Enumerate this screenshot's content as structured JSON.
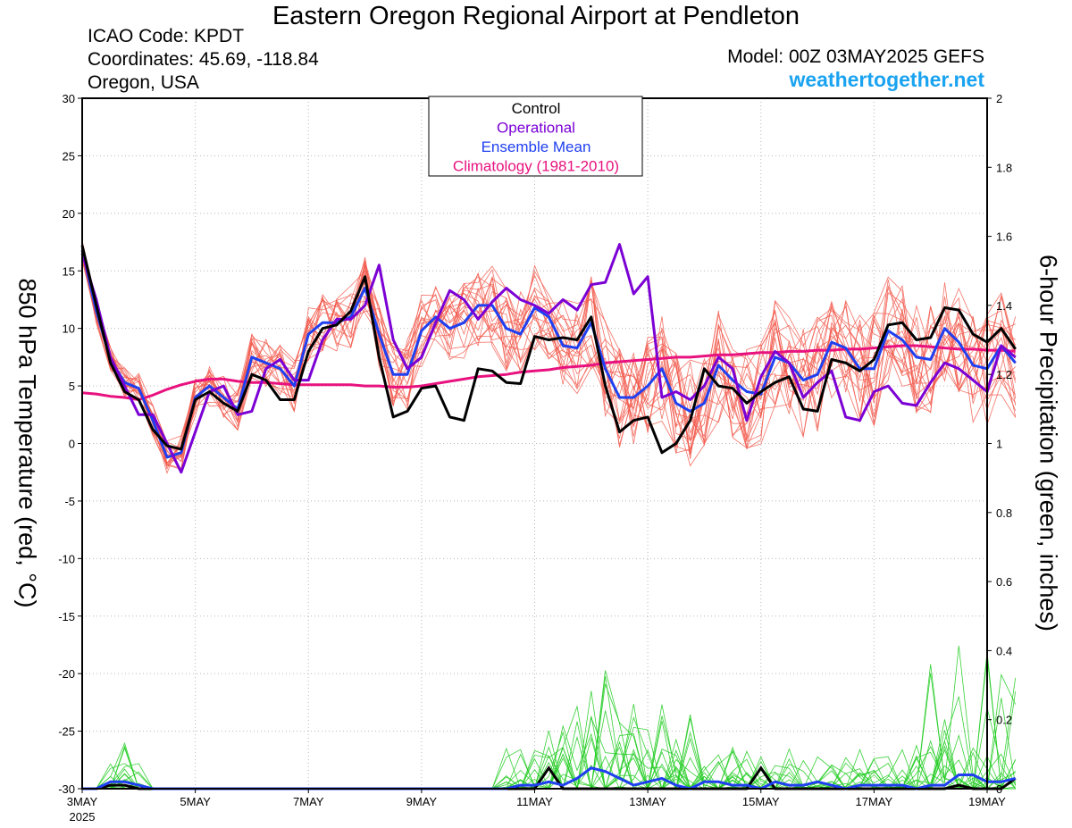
{
  "header": {
    "title": "Eastern Oregon Regional Airport at Pendleton",
    "icao": "ICAO Code: KPDT",
    "coordinates": "Coordinates: 45.69, -118.84",
    "region": "Oregon, USA",
    "model": "Model: 00Z 03MAY2025 GEFS",
    "brand": "weathertogether.net"
  },
  "colors": {
    "control": "#000000",
    "operational": "#7b00d4",
    "ensemble_mean": "#1f3ff0",
    "climatology": "#e8127f",
    "members_temp": "#f25a4e",
    "members_precip": "#22cc22",
    "brand": "#1aa3f0"
  },
  "chart_data": {
    "type": "line",
    "title": "Eastern Oregon Regional Airport at Pendleton",
    "xlabel": "",
    "ylabel": "850 hPa Temperature (red, °C)",
    "ylabel_right": "6-hour Precipitation (green, inches)",
    "x_unit": "days since 3 May 2025 00Z (6-hourly)",
    "xlim": [
      0,
      16
    ],
    "ylim": [
      -30,
      30
    ],
    "ylim_right": [
      0,
      2
    ],
    "x_ticks": [
      {
        "x": 0,
        "label": "3MAY"
      },
      {
        "x": 2,
        "label": "5MAY"
      },
      {
        "x": 4,
        "label": "7MAY"
      },
      {
        "x": 6,
        "label": "9MAY"
      },
      {
        "x": 8,
        "label": "11MAY"
      },
      {
        "x": 10,
        "label": "13MAY"
      },
      {
        "x": 12,
        "label": "15MAY"
      },
      {
        "x": 14,
        "label": "17MAY"
      },
      {
        "x": 16,
        "label": "19MAY"
      }
    ],
    "year_label": "2025",
    "y_ticks": [
      30,
      25,
      20,
      15,
      10,
      5,
      0,
      -5,
      -10,
      -15,
      -20,
      -25,
      -30
    ],
    "y2_ticks": [
      2,
      1.8,
      1.6,
      1.4,
      1.2,
      1,
      0.8,
      0.6,
      0.4,
      0.2,
      0
    ],
    "grid": true,
    "legend": {
      "position": "top-center",
      "entries": [
        {
          "label": "Control",
          "color": "#000000"
        },
        {
          "label": "Operational",
          "color": "#7b00d4"
        },
        {
          "label": "Ensemble Mean",
          "color": "#1f3ff0"
        },
        {
          "label": "Climatology (1981-2010)",
          "color": "#e8127f"
        }
      ]
    },
    "series": [
      {
        "name": "Control",
        "axis": "temperature",
        "color": "#000000",
        "values": [
          17.2,
          12.0,
          7.0,
          4.5,
          3.8,
          1.2,
          -0.2,
          -0.5,
          3.8,
          4.5,
          3.5,
          2.8,
          6.0,
          5.5,
          3.8,
          3.8,
          8.0,
          10.0,
          10.3,
          11.5,
          14.5,
          7.5,
          2.3,
          2.8,
          4.8,
          5.0,
          2.3,
          2.0,
          6.5,
          6.3,
          5.3,
          5.2,
          9.3,
          9.0,
          9.2,
          9.0,
          11.0,
          5.0,
          1.0,
          2.0,
          2.3,
          -0.8,
          0.0,
          2.0,
          6.5,
          5.0,
          4.8,
          3.5,
          4.5,
          5.3,
          5.8,
          3.0,
          2.8,
          7.3,
          7.0,
          6.3,
          7.3,
          10.3,
          10.5,
          9.0,
          9.2,
          11.8,
          11.6,
          9.5,
          8.8,
          10.0,
          8.2
        ]
      },
      {
        "name": "Operational",
        "axis": "temperature",
        "color": "#7b00d4",
        "values": [
          16.5,
          12.5,
          7.5,
          5.0,
          2.5,
          2.5,
          0.0,
          -2.5,
          1.0,
          4.5,
          5.0,
          2.5,
          2.8,
          6.5,
          7.3,
          5.5,
          5.5,
          9.0,
          10.8,
          10.8,
          12.0,
          15.5,
          9.0,
          6.5,
          7.5,
          10.5,
          13.3,
          12.5,
          10.8,
          12.3,
          13.5,
          12.5,
          12.0,
          11.3,
          12.5,
          11.6,
          13.8,
          14.0,
          17.3,
          13.0,
          14.5,
          4.0,
          4.5,
          3.8,
          5.0,
          7.5,
          6.5,
          2.0,
          5.8,
          8.0,
          7.0,
          4.0,
          5.3,
          6.3,
          2.3,
          2.0,
          4.5,
          5.0,
          3.5,
          3.3,
          5.3,
          7.0,
          6.5,
          5.5,
          4.5,
          8.5,
          7.5
        ]
      },
      {
        "name": "Ensemble Mean",
        "axis": "temperature",
        "color": "#1f3ff0",
        "values": [
          16.8,
          11.5,
          7.3,
          5.3,
          4.8,
          2.0,
          -1.2,
          -0.8,
          4.0,
          5.0,
          4.0,
          3.0,
          7.5,
          7.0,
          6.5,
          5.0,
          9.5,
          10.5,
          10.5,
          11.0,
          13.5,
          9.5,
          6.0,
          6.0,
          9.8,
          11.0,
          10.0,
          10.5,
          12.0,
          12.0,
          10.0,
          9.5,
          11.8,
          11.0,
          8.5,
          8.3,
          10.5,
          6.5,
          4.0,
          4.0,
          5.0,
          6.5,
          3.5,
          2.8,
          3.5,
          6.8,
          5.5,
          4.5,
          4.3,
          7.5,
          7.0,
          5.5,
          6.0,
          8.8,
          8.3,
          6.5,
          6.5,
          9.8,
          9.0,
          7.5,
          7.3,
          10.0,
          8.8,
          6.8,
          6.5,
          8.5,
          7.0
        ]
      },
      {
        "name": "Climatology (1981-2010)",
        "axis": "temperature",
        "color": "#e8127f",
        "values": [
          4.4,
          4.3,
          4.1,
          4.0,
          3.8,
          4.2,
          4.7,
          5.1,
          5.4,
          5.6,
          5.6,
          5.4,
          5.3,
          5.3,
          5.2,
          5.1,
          5.1,
          5.1,
          5.1,
          5.1,
          5.0,
          5.0,
          4.9,
          4.9,
          5.0,
          5.2,
          5.4,
          5.6,
          5.8,
          5.9,
          6.0,
          6.2,
          6.3,
          6.4,
          6.6,
          6.7,
          6.8,
          7.0,
          7.1,
          7.2,
          7.3,
          7.4,
          7.5,
          7.5,
          7.6,
          7.7,
          7.7,
          7.8,
          7.9,
          7.9,
          8.0,
          8.0,
          8.1,
          8.1,
          8.2,
          8.2,
          8.3,
          8.4,
          8.5,
          8.5,
          8.4,
          8.3,
          8.2,
          8.2,
          8.1,
          8.1,
          8.0
        ]
      },
      {
        "name": "Control",
        "axis": "precipitation",
        "color": "#000000",
        "values": [
          0,
          0,
          0.01,
          0.01,
          0,
          0,
          0,
          0,
          0,
          0,
          0,
          0,
          0,
          0,
          0,
          0,
          0,
          0,
          0,
          0,
          0,
          0,
          0,
          0,
          0,
          0,
          0,
          0,
          0,
          0,
          0,
          0,
          0,
          0.06,
          0,
          0,
          0,
          0,
          0,
          0,
          0,
          0,
          0,
          0,
          0,
          0,
          0,
          0,
          0.06,
          0,
          0,
          0,
          0,
          0,
          0,
          0,
          0,
          0,
          0,
          0,
          0,
          0,
          0.01,
          0,
          0,
          0,
          0.03
        ]
      },
      {
        "name": "Ensemble Mean",
        "axis": "precipitation",
        "color": "#1f3ff0",
        "values": [
          0,
          0,
          0.02,
          0.02,
          0.01,
          0,
          0,
          0,
          0,
          0,
          0,
          0,
          0,
          0,
          0,
          0,
          0,
          0,
          0,
          0,
          0,
          0,
          0,
          0,
          0,
          0,
          0,
          0,
          0,
          0,
          0,
          0.01,
          0.01,
          0.02,
          0.01,
          0.03,
          0.06,
          0.05,
          0.03,
          0.01,
          0.02,
          0.03,
          0.01,
          0,
          0.02,
          0.02,
          0.01,
          0.01,
          0,
          0.02,
          0.01,
          0.01,
          0.02,
          0.01,
          0,
          0.01,
          0.01,
          0.01,
          0.01,
          0,
          0.01,
          0.01,
          0.04,
          0.04,
          0.02,
          0.02,
          0.03
        ]
      }
    ]
  }
}
